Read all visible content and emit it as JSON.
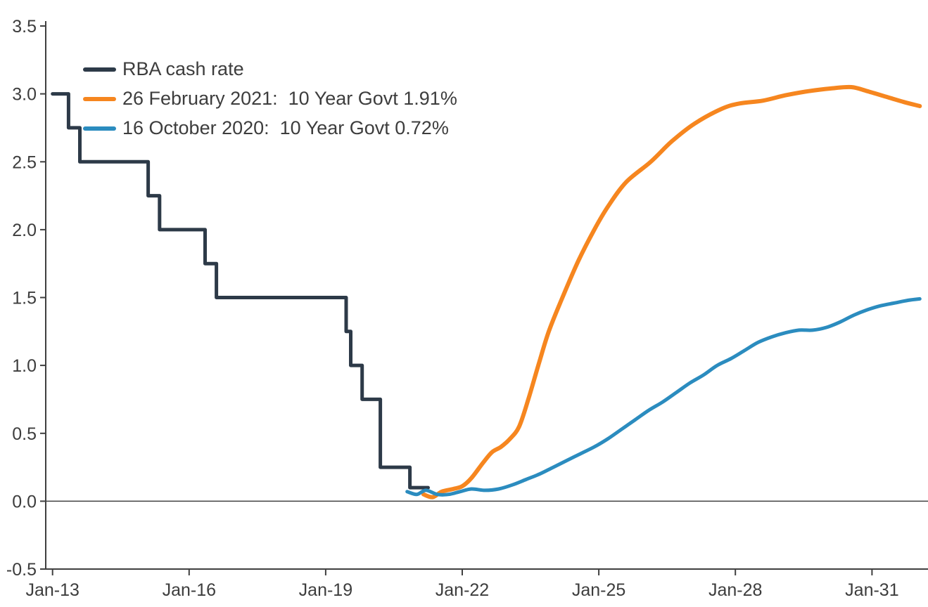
{
  "chart_data": {
    "type": "line",
    "title": "",
    "xlabel": "",
    "ylabel": "",
    "xlim": [
      2012.85,
      2032.2
    ],
    "ylim": [
      -0.5,
      3.5
    ],
    "x_ticks": [
      2013,
      2016,
      2019,
      2022,
      2025,
      2028,
      2031
    ],
    "x_tick_labels": [
      "Jan-13",
      "Jan-16",
      "Jan-19",
      "Jan-22",
      "Jan-25",
      "Jan-28",
      "Jan-31"
    ],
    "y_ticks": [
      3.5,
      3.0,
      2.5,
      2.0,
      1.5,
      1.0,
      0.5,
      0.0,
      -0.5
    ],
    "y_tick_labels": [
      "3.5",
      "3.0",
      "2.5",
      "2.0",
      "1.5",
      "1.0",
      "0.5",
      "0.0",
      "-0.5"
    ],
    "grid": false,
    "legend_position": "top-left",
    "axis_color": "#404040",
    "label_color": "#3d3d3d",
    "series": [
      {
        "name": "RBA cash rate",
        "color": "#2d3a48",
        "style": "step",
        "width": 5,
        "points": [
          [
            2013.0,
            3.0
          ],
          [
            2013.35,
            2.75
          ],
          [
            2013.6,
            2.5
          ],
          [
            2015.1,
            2.25
          ],
          [
            2015.35,
            2.0
          ],
          [
            2016.35,
            1.75
          ],
          [
            2016.6,
            1.5
          ],
          [
            2019.45,
            1.25
          ],
          [
            2019.55,
            1.0
          ],
          [
            2019.8,
            0.75
          ],
          [
            2020.2,
            0.25
          ],
          [
            2020.85,
            0.1
          ],
          [
            2021.25,
            0.1
          ]
        ]
      },
      {
        "name": "26 February 2021:  10 Year Govt 1.91%",
        "color": "#f6861f",
        "style": "line",
        "width": 6,
        "points": [
          [
            2021.15,
            0.05
          ],
          [
            2021.35,
            0.03
          ],
          [
            2021.55,
            0.07
          ],
          [
            2021.8,
            0.09
          ],
          [
            2022.0,
            0.11
          ],
          [
            2022.2,
            0.17
          ],
          [
            2022.45,
            0.28
          ],
          [
            2022.65,
            0.36
          ],
          [
            2022.85,
            0.4
          ],
          [
            2023.05,
            0.46
          ],
          [
            2023.25,
            0.55
          ],
          [
            2023.45,
            0.75
          ],
          [
            2023.67,
            1.0
          ],
          [
            2023.9,
            1.25
          ],
          [
            2024.2,
            1.5
          ],
          [
            2024.55,
            1.77
          ],
          [
            2024.9,
            2.0
          ],
          [
            2025.2,
            2.17
          ],
          [
            2025.6,
            2.35
          ],
          [
            2026.14,
            2.5
          ],
          [
            2026.6,
            2.65
          ],
          [
            2027.1,
            2.78
          ],
          [
            2027.7,
            2.89
          ],
          [
            2028.1,
            2.93
          ],
          [
            2028.6,
            2.95
          ],
          [
            2029.1,
            2.99
          ],
          [
            2029.6,
            3.02
          ],
          [
            2030.1,
            3.04
          ],
          [
            2030.55,
            3.05
          ],
          [
            2030.9,
            3.02
          ],
          [
            2031.3,
            2.98
          ],
          [
            2031.7,
            2.94
          ],
          [
            2032.05,
            2.91
          ]
        ]
      },
      {
        "name": "16 October 2020:  10 Year Govt 0.72%",
        "color": "#2b8cbf",
        "style": "line",
        "width": 5,
        "points": [
          [
            2020.79,
            0.07
          ],
          [
            2021.0,
            0.05
          ],
          [
            2021.2,
            0.08
          ],
          [
            2021.45,
            0.05
          ],
          [
            2021.7,
            0.05
          ],
          [
            2021.95,
            0.07
          ],
          [
            2022.2,
            0.09
          ],
          [
            2022.5,
            0.08
          ],
          [
            2022.8,
            0.09
          ],
          [
            2023.1,
            0.12
          ],
          [
            2023.4,
            0.16
          ],
          [
            2023.7,
            0.2
          ],
          [
            2024.0,
            0.25
          ],
          [
            2024.3,
            0.3
          ],
          [
            2024.6,
            0.35
          ],
          [
            2024.9,
            0.4
          ],
          [
            2025.2,
            0.46
          ],
          [
            2025.5,
            0.53
          ],
          [
            2025.8,
            0.6
          ],
          [
            2026.1,
            0.67
          ],
          [
            2026.4,
            0.73
          ],
          [
            2026.7,
            0.8
          ],
          [
            2027.0,
            0.87
          ],
          [
            2027.3,
            0.93
          ],
          [
            2027.6,
            1.0
          ],
          [
            2027.9,
            1.05
          ],
          [
            2028.2,
            1.11
          ],
          [
            2028.5,
            1.17
          ],
          [
            2028.8,
            1.21
          ],
          [
            2029.1,
            1.24
          ],
          [
            2029.4,
            1.26
          ],
          [
            2029.7,
            1.26
          ],
          [
            2030.0,
            1.28
          ],
          [
            2030.3,
            1.32
          ],
          [
            2030.6,
            1.37
          ],
          [
            2030.9,
            1.41
          ],
          [
            2031.2,
            1.44
          ],
          [
            2031.5,
            1.46
          ],
          [
            2031.8,
            1.48
          ],
          [
            2032.05,
            1.49
          ]
        ]
      }
    ]
  }
}
